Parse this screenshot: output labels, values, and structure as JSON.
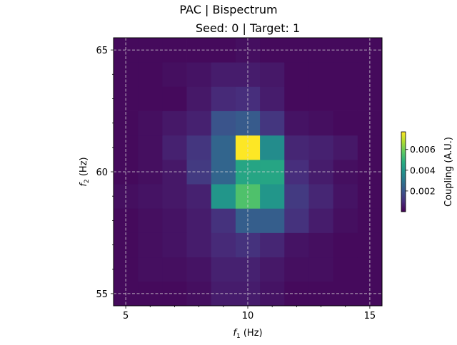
{
  "figure": {
    "suptitle": "PAC | Bispectrum"
  },
  "chart_data": {
    "type": "heatmap",
    "title": "Seed: 0 | Target: 1",
    "xlabel": {
      "main": "f",
      "sub": "1",
      "unit": " (Hz)"
    },
    "ylabel": {
      "main": "f",
      "sub": "2",
      "unit": " (Hz)"
    },
    "x_centers": [
      5,
      6,
      7,
      8,
      9,
      10,
      11,
      12,
      13,
      14,
      15
    ],
    "y_centers": [
      55,
      56,
      57,
      58,
      59,
      60,
      61,
      62,
      63,
      64,
      65
    ],
    "xlim": [
      4.5,
      15.5
    ],
    "ylim": [
      54.5,
      65.5
    ],
    "x_ticks": [
      5,
      10,
      15
    ],
    "y_ticks": [
      55,
      60,
      65
    ],
    "x_tick_labels": [
      "5",
      "10",
      "15"
    ],
    "y_tick_labels": [
      "55",
      "60",
      "65"
    ],
    "grid": true,
    "colormap": "viridis",
    "clim": [
      0.0,
      0.0077
    ],
    "values_rows_by_y": [
      [
        0.0002,
        0.0002,
        0.0002,
        0.0003,
        0.0006,
        0.0006,
        0.0004,
        0.0002,
        0.0002,
        0.0002,
        0.0002
      ],
      [
        0.0002,
        0.0003,
        0.0003,
        0.0004,
        0.0007,
        0.0007,
        0.0005,
        0.0003,
        0.0003,
        0.0002,
        0.0002
      ],
      [
        0.0002,
        0.0003,
        0.0004,
        0.0006,
        0.0009,
        0.0011,
        0.0008,
        0.0004,
        0.0003,
        0.0002,
        0.0002
      ],
      [
        0.0002,
        0.0003,
        0.0004,
        0.0006,
        0.0011,
        0.0023,
        0.0023,
        0.0011,
        0.0006,
        0.0003,
        0.0002
      ],
      [
        0.0003,
        0.0004,
        0.0005,
        0.0007,
        0.004,
        0.0055,
        0.004,
        0.0013,
        0.0008,
        0.0004,
        0.0002
      ],
      [
        0.0002,
        0.0003,
        0.0005,
        0.0013,
        0.0025,
        0.0045,
        0.0045,
        0.001,
        0.0006,
        0.0003,
        0.0002
      ],
      [
        0.0002,
        0.0003,
        0.0007,
        0.0012,
        0.0025,
        0.0077,
        0.0037,
        0.0008,
        0.0007,
        0.0005,
        0.0002
      ],
      [
        0.0002,
        0.0003,
        0.0005,
        0.0007,
        0.002,
        0.0022,
        0.0012,
        0.0004,
        0.0003,
        0.0002,
        0.0002
      ],
      [
        0.0002,
        0.0002,
        0.0002,
        0.0005,
        0.0009,
        0.001,
        0.0006,
        0.0002,
        0.0002,
        0.0002,
        0.0002
      ],
      [
        0.0002,
        0.0002,
        0.0003,
        0.0004,
        0.0006,
        0.0006,
        0.0005,
        0.0002,
        0.0002,
        0.0002,
        0.0002
      ],
      [
        0.0002,
        0.0002,
        0.0002,
        0.0002,
        0.0002,
        0.0003,
        0.0002,
        0.0002,
        0.0002,
        0.0002,
        0.0002
      ]
    ],
    "colorbar": {
      "label": "Coupling (A.U.)",
      "ticks": [
        0.002,
        0.004,
        0.006
      ],
      "tick_labels": [
        "0.002",
        "0.004",
        "0.006"
      ]
    }
  }
}
